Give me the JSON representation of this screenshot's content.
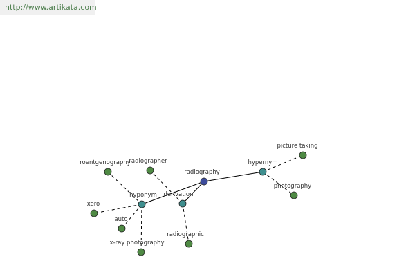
{
  "header": {
    "url": "http://www.artikata.com"
  },
  "nodes": [
    {
      "label": "radiography"
    },
    {
      "label": "hypernym"
    },
    {
      "label": "hyponym"
    },
    {
      "label": "derivation"
    },
    {
      "label": "picture taking"
    },
    {
      "label": "photography"
    },
    {
      "label": "roentgenography"
    },
    {
      "label": "radiographer"
    },
    {
      "label": "xero"
    },
    {
      "label": "auto"
    },
    {
      "label": "x-ray photography"
    },
    {
      "label": "radiographic"
    }
  ]
}
